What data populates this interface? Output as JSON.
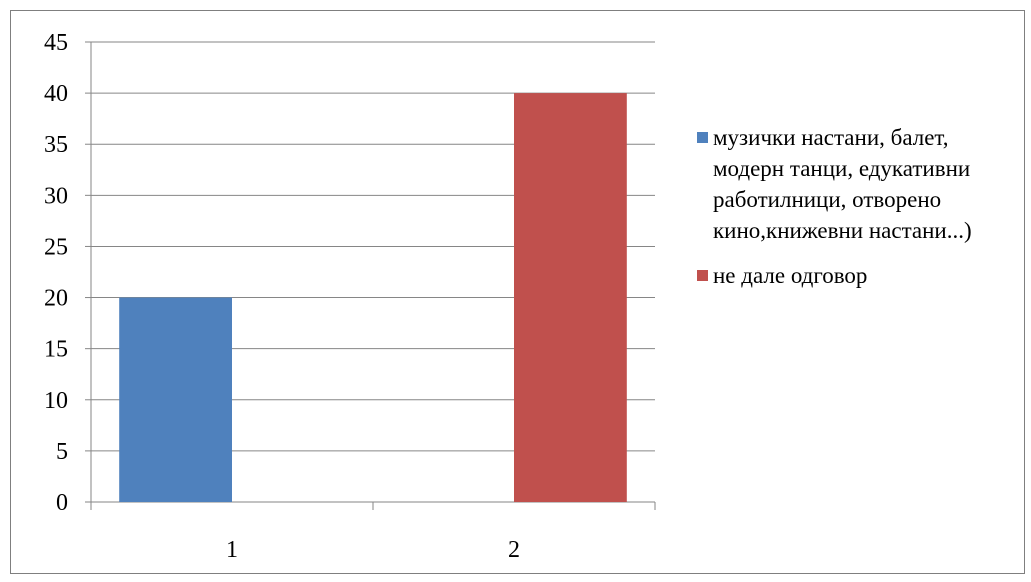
{
  "chart_data": {
    "type": "bar",
    "categories": [
      "1",
      "2"
    ],
    "series": [
      {
        "name": "музички настани, балет, модерн танци, едукативни работилници, отворено кино,книжевни настани...)",
        "values": [
          20,
          null
        ],
        "color": "#4f81bd"
      },
      {
        "name": "не дале одговор",
        "values": [
          null,
          40
        ],
        "color": "#c0504d"
      }
    ],
    "title": "",
    "xlabel": "",
    "ylabel": "",
    "ylim": [
      0,
      45
    ],
    "yticks": [
      0,
      5,
      10,
      15,
      20,
      25,
      30,
      35,
      40,
      45
    ],
    "grid": true,
    "legend_position": "right"
  }
}
